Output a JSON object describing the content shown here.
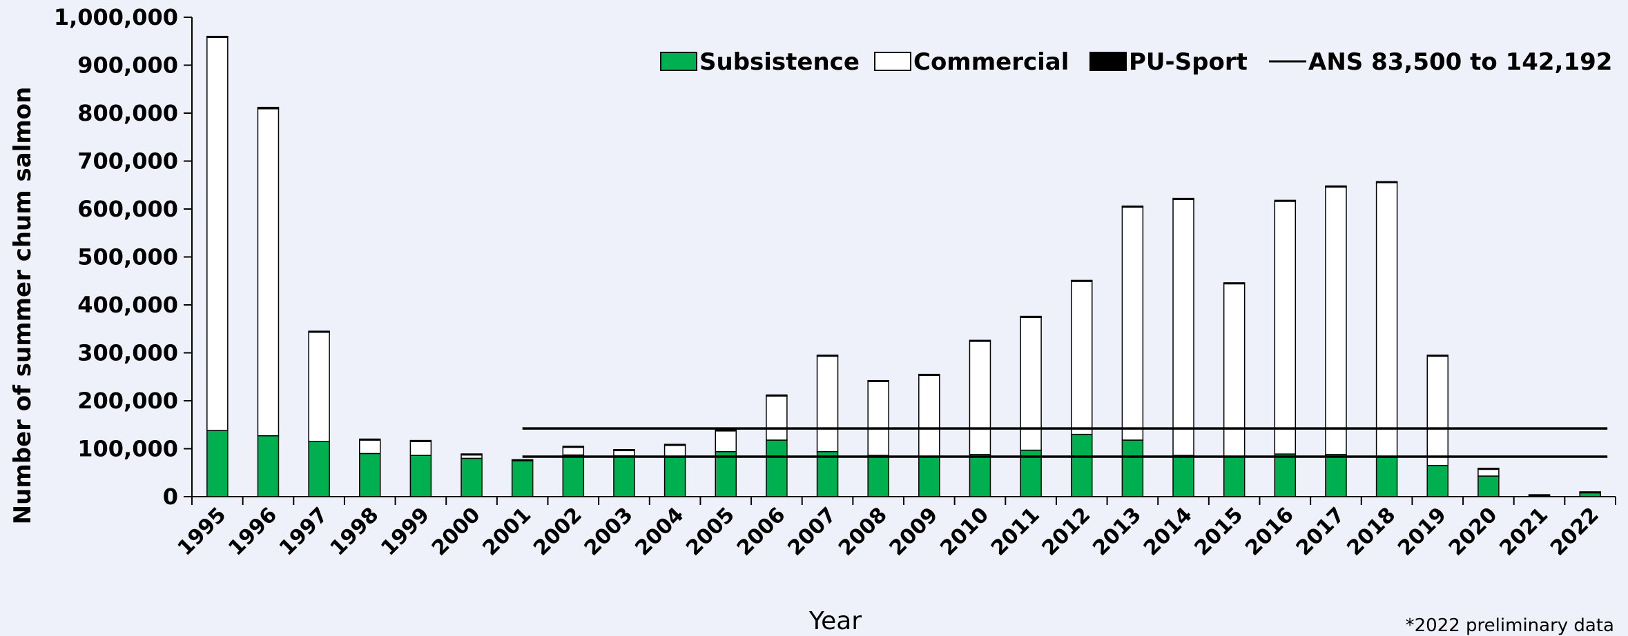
{
  "chart_data": {
    "type": "bar",
    "stacked": true,
    "title": "",
    "xlabel": "Year",
    "ylabel": "Number of summer chum salmon",
    "note": "*2022 preliminary data",
    "ylim": [
      0,
      1000000
    ],
    "yticks": [
      "0",
      "100,000",
      "200,000",
      "300,000",
      "400,000",
      "500,000",
      "600,000",
      "700,000",
      "800,000",
      "900,000",
      "1,000,000"
    ],
    "categories": [
      "1995",
      "1996",
      "1997",
      "1998",
      "1999",
      "2000",
      "2001",
      "2002",
      "2003",
      "2004",
      "2005",
      "2006",
      "2007",
      "2008",
      "2009",
      "2010",
      "2011",
      "2012",
      "2013",
      "2014",
      "2015",
      "2016",
      "2017",
      "2018",
      "2019",
      "2020",
      "2021",
      "2022"
    ],
    "series": [
      {
        "name": "Subsistence",
        "color": "#00b050",
        "values": [
          138000,
          127000,
          115000,
          90000,
          86000,
          80000,
          75000,
          87000,
          85000,
          82000,
          94000,
          118000,
          94000,
          86000,
          83000,
          88000,
          97000,
          130000,
          118000,
          86000,
          83000,
          89000,
          88000,
          82000,
          65000,
          43000,
          2000,
          8000
        ]
      },
      {
        "name": "Commercial",
        "color": "#ffffff",
        "values": [
          820000,
          682000,
          228000,
          28000,
          29000,
          7000,
          0,
          16000,
          11000,
          25000,
          43000,
          92000,
          199000,
          154000,
          170000,
          236000,
          277000,
          319000,
          486000,
          534000,
          361000,
          527000,
          558000,
          573000,
          228000,
          14000,
          0,
          0
        ]
      },
      {
        "name": "PU-Sport",
        "color": "#000000",
        "values": [
          1000,
          3000,
          1000,
          1000,
          1000,
          1000,
          1000,
          1000,
          1000,
          1000,
          1000,
          1000,
          1000,
          1000,
          1000,
          1000,
          1000,
          1000,
          1000,
          1000,
          1000,
          1000,
          1000,
          1000,
          1000,
          1000,
          500,
          500
        ]
      }
    ],
    "reference_lines": {
      "legend_label": "ANS 83,500 to 142,192",
      "values": [
        83500,
        142192
      ],
      "from": "2001",
      "to": "2022"
    },
    "legend_placement": "top-right",
    "grid": false
  }
}
